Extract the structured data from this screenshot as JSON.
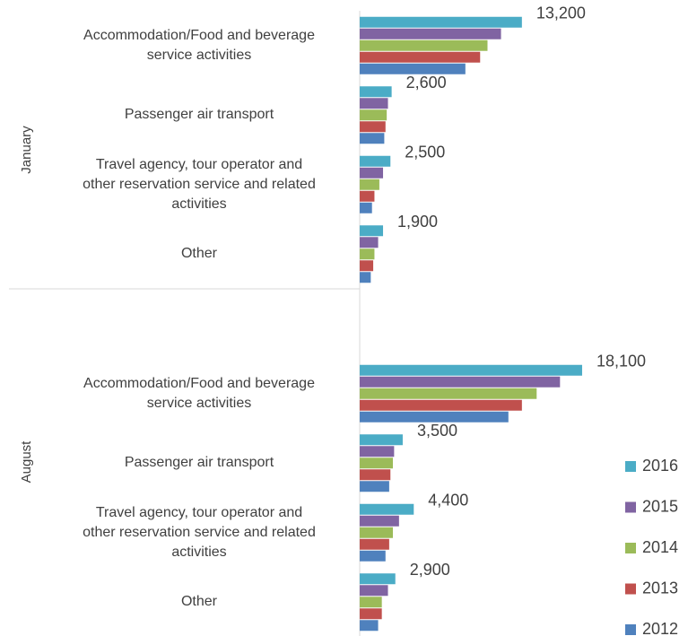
{
  "chart_data": {
    "type": "bar",
    "orientation": "horizontal",
    "groups": [
      "January",
      "August"
    ],
    "categories": [
      "Accommodation/Food and beverage\nservice activities",
      "Passenger air transport",
      "Travel agency, tour operator and\nother reservation service and related\nactivities",
      "Other",
      "Accommodation/Food and beverage\nservice activities",
      "Passenger air transport",
      "Travel agency, tour operator and\nother reservation service and related\nactivities",
      "Other"
    ],
    "series": [
      {
        "name": "2016",
        "color": "#4bacc6",
        "values": [
          13200,
          2600,
          2500,
          1900,
          18100,
          3500,
          4400,
          2900
        ],
        "value_labels": [
          "13,200",
          "2,600",
          "2,500",
          "1,900",
          "18,100",
          "3,500",
          "4,400",
          "2,900"
        ]
      },
      {
        "name": "2015",
        "color": "#8064a2",
        "values": [
          11500,
          2300,
          1900,
          1500,
          16300,
          2800,
          3200,
          2300
        ]
      },
      {
        "name": "2014",
        "color": "#9bbb59",
        "values": [
          10400,
          2200,
          1600,
          1200,
          14400,
          2700,
          2700,
          1800
        ]
      },
      {
        "name": "2013",
        "color": "#c0504d",
        "values": [
          9800,
          2100,
          1200,
          1100,
          13200,
          2500,
          2400,
          1800
        ]
      },
      {
        "name": "2012",
        "color": "#4f81bd",
        "values": [
          8600,
          2000,
          1000,
          900,
          12100,
          2400,
          2100,
          1500
        ]
      }
    ],
    "xlim": [
      0,
      20000
    ],
    "legend": "right"
  }
}
